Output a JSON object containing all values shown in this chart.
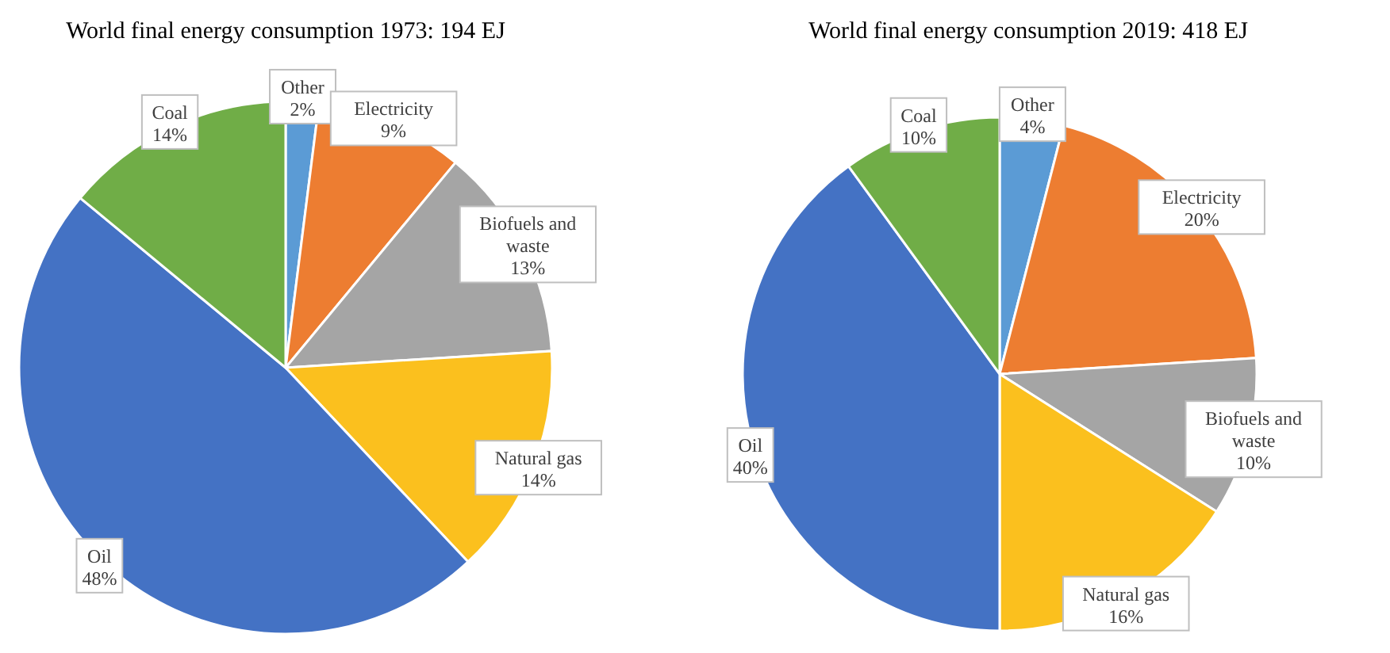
{
  "chart_data": [
    {
      "type": "pie",
      "title": "World final energy consumption 1973: 194 EJ",
      "categories": [
        "Other",
        "Electricity",
        "Biofuels and waste",
        "Natural gas",
        "Oil",
        "Coal"
      ],
      "values": [
        2,
        9,
        13,
        14,
        48,
        14
      ],
      "value_labels": [
        "2%",
        "9%",
        "13%",
        "14%",
        "48%",
        "14%"
      ],
      "colors": [
        "#5b9bd5",
        "#ed7d31",
        "#a5a5a5",
        "#fbc01e",
        "#4472c4",
        "#70ad47"
      ]
    },
    {
      "type": "pie",
      "title": "World final energy consumption 2019: 418 EJ",
      "categories": [
        "Other",
        "Electricity",
        "Biofuels and waste",
        "Natural gas",
        "Oil",
        "Coal"
      ],
      "values": [
        4,
        20,
        10,
        16,
        40,
        10
      ],
      "value_labels": [
        "4%",
        "20%",
        "10%",
        "16%",
        "40%",
        "10%"
      ],
      "colors": [
        "#5b9bd5",
        "#ed7d31",
        "#a5a5a5",
        "#fbc01e",
        "#4472c4",
        "#70ad47"
      ]
    }
  ]
}
